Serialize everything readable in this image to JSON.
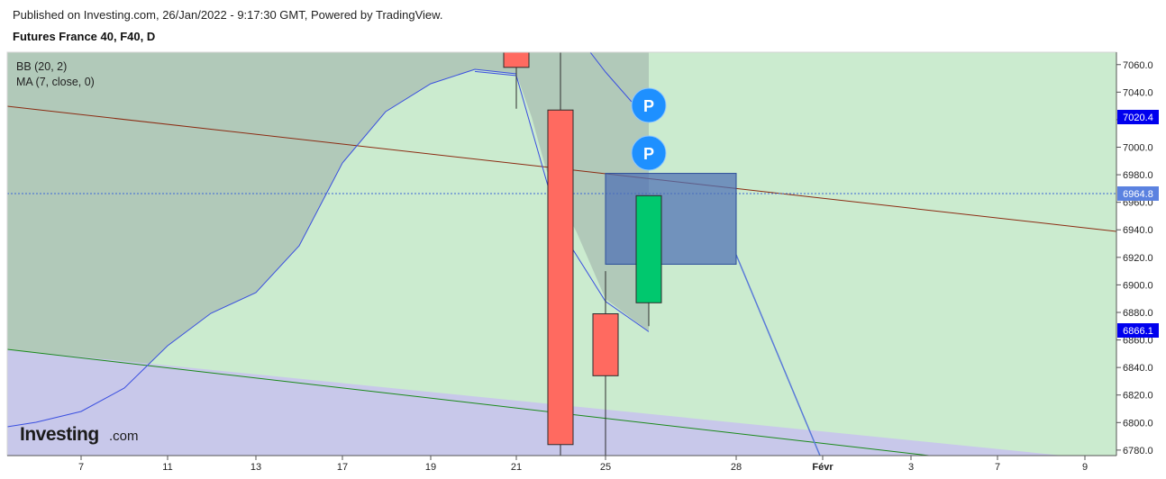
{
  "header": {
    "published": "Published on Investing.com, 26/Jan/2022 - 9:17:30 GMT, Powered by TradingView.",
    "title": "Futures France 40, F40, D"
  },
  "legend": {
    "bb": "BB (20, 2)",
    "ma": "MA (7, close, 0)"
  },
  "logo": {
    "text": "Investing",
    "suffix": ".com"
  },
  "colors": {
    "up": "#00c86e",
    "down": "#ff6a60",
    "bb_fill": "#cbebcf",
    "shadow_fill": "#b1c9b9",
    "lower_band_fill": "#c8c8ea",
    "line_blue": "#3a4fe0",
    "accent": "#0000ff"
  },
  "markers": {
    "p_label": "P"
  },
  "chart_data": {
    "type": "candlestick",
    "x_ticks": [
      "7",
      "11",
      "13",
      "17",
      "19",
      "21",
      "25",
      "28",
      "Févr",
      "3",
      "7",
      "9"
    ],
    "y_ticks": [
      "6780.0",
      "6800.0",
      "6820.0",
      "6840.0",
      "6860.0",
      "6880.0",
      "6900.0",
      "6920.0",
      "6940.0",
      "6960.0",
      "6980.0",
      "7000.0",
      "7020.0",
      "7040.0",
      "7060.0"
    ],
    "ylim": [
      6776,
      7069
    ],
    "price_labels": {
      "upper": "7020.4",
      "current": "6964.8",
      "lower": "6866.1"
    },
    "candles": [
      {
        "date": "21",
        "open": 7069,
        "high": 7069,
        "close": 7058,
        "low": 7028
      },
      {
        "date": "24",
        "open": 7027,
        "high": 7069,
        "close": 6784,
        "low": 6776
      },
      {
        "date": "25",
        "open": 6879,
        "high": 6910,
        "close": 6834,
        "low": 6776
      },
      {
        "date": "26",
        "open": 6887,
        "high": 6964.8,
        "close": 6964.8,
        "low": 6870
      }
    ],
    "rectangle": {
      "date_from": "25",
      "date_to": "28",
      "top": 6981,
      "bottom": 6915
    },
    "ma_line": [
      {
        "date": "20",
        "value": 7055
      },
      {
        "date": "21",
        "value": 7052
      },
      {
        "date": "24",
        "value": 6940
      },
      {
        "date": "25",
        "value": 6888
      },
      {
        "date": "26",
        "value": 6866
      }
    ]
  }
}
